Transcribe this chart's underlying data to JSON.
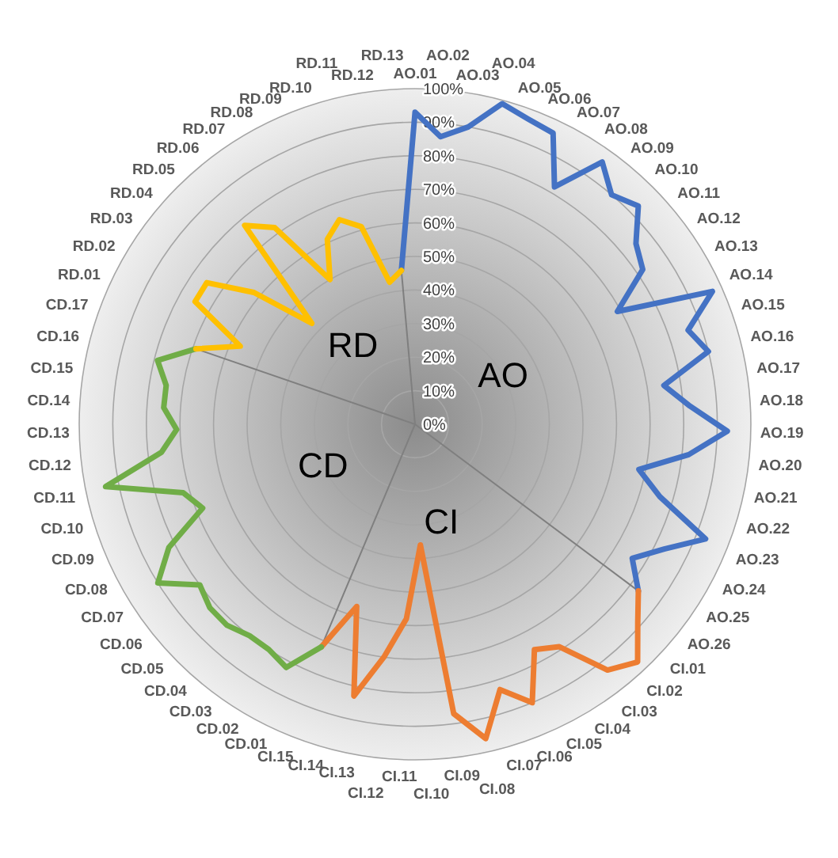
{
  "chart_data": {
    "type": "radar",
    "categories": [
      "AO.01",
      "AO.02",
      "AO.03",
      "AO.04",
      "AO.05",
      "AO.06",
      "AO.07",
      "AO.08",
      "AO.09",
      "AO.10",
      "AO.11",
      "AO.12",
      "AO.13",
      "AO.14",
      "AO.15",
      "AO.16",
      "AO.17",
      "AO.18",
      "AO.19",
      "AO.20",
      "AO.21",
      "AO.22",
      "AO.23",
      "AO.24",
      "AO.25",
      "AO.26",
      "CI.01",
      "CI.02",
      "CI.03",
      "CI.04",
      "CI.05",
      "CI.06",
      "CI.07",
      "CI.08",
      "CI.09",
      "CI.10",
      "CI.11",
      "CI.12",
      "CI.13",
      "CI.14",
      "CI.15",
      "CD.01",
      "CD.02",
      "CD.03",
      "CD.04",
      "CD.05",
      "CD.06",
      "CD.07",
      "CD.08",
      "CD.09",
      "CD.10",
      "CD.11",
      "CD.12",
      "CD.13",
      "CD.14",
      "CD.15",
      "CD.16",
      "CD.17",
      "RD.01",
      "RD.02",
      "RD.03",
      "RD.04",
      "RD.05",
      "RD.06",
      "RD.07",
      "RD.08",
      "RD.09",
      "RD.10",
      "RD.11",
      "RD.12",
      "RD.13"
    ],
    "series": [
      {
        "color": "#4472c4",
        "values": [
          93,
          86,
          90,
          99,
          97,
          96,
          82,
          96,
          90,
          93,
          85,
          82,
          69,
          97,
          86,
          90,
          75,
          82,
          93,
          82,
          68,
          76,
          93,
          83,
          76,
          83,
          null,
          null,
          null,
          null,
          null,
          null,
          null,
          null,
          null,
          null,
          null,
          null,
          null,
          null,
          null,
          null,
          null,
          null,
          null,
          null,
          null,
          null,
          null,
          null,
          null,
          null,
          null,
          null,
          null,
          null,
          null,
          null,
          null,
          null,
          null,
          null,
          null,
          null,
          null,
          null,
          null,
          null,
          null,
          null,
          46
        ]
      },
      {
        "color": "#ed7d31",
        "values": [
          null,
          null,
          null,
          null,
          null,
          null,
          null,
          null,
          null,
          null,
          null,
          null,
          null,
          null,
          null,
          null,
          null,
          null,
          null,
          null,
          null,
          null,
          null,
          null,
          null,
          83,
          89,
          97,
          93,
          79,
          76,
          90,
          83,
          96,
          87,
          36,
          58,
          70,
          83,
          57,
          72,
          null,
          null,
          null,
          null,
          null,
          null,
          null,
          null,
          null,
          null,
          null,
          null,
          null,
          null,
          null,
          null,
          null,
          null,
          null,
          null,
          null,
          null,
          null,
          null,
          null,
          null,
          null,
          null,
          null,
          null
        ]
      },
      {
        "color": "#70ad47",
        "values": [
          null,
          null,
          null,
          null,
          null,
          null,
          null,
          null,
          null,
          null,
          null,
          null,
          null,
          null,
          null,
          null,
          null,
          null,
          null,
          null,
          null,
          null,
          null,
          null,
          null,
          null,
          null,
          null,
          null,
          null,
          null,
          null,
          null,
          null,
          null,
          null,
          null,
          null,
          null,
          null,
          72,
          82,
          80,
          80,
          82,
          82,
          80,
          90,
          82,
          68,
          72,
          94,
          76,
          71,
          75,
          75,
          79,
          69,
          null,
          null,
          null,
          null,
          null,
          null,
          null,
          null,
          null,
          null,
          null,
          null,
          null
        ]
      },
      {
        "color": "#ffc000",
        "values": [
          null,
          null,
          null,
          null,
          null,
          null,
          null,
          null,
          null,
          null,
          null,
          null,
          null,
          null,
          null,
          null,
          null,
          null,
          null,
          null,
          null,
          null,
          null,
          null,
          null,
          null,
          null,
          null,
          null,
          null,
          null,
          null,
          null,
          null,
          null,
          null,
          null,
          null,
          null,
          null,
          null,
          null,
          null,
          null,
          null,
          null,
          null,
          null,
          null,
          null,
          null,
          null,
          null,
          null,
          null,
          null,
          null,
          69,
          57,
          75,
          75,
          62,
          43,
          78,
          72,
          50,
          61,
          65,
          61,
          43,
          46
        ]
      }
    ],
    "ylim": [
      0,
      100
    ],
    "yticks": [
      {
        "value": 0,
        "label": "0%"
      },
      {
        "value": 10,
        "label": "10%"
      },
      {
        "value": 20,
        "label": "20%"
      },
      {
        "value": 30,
        "label": "30%"
      },
      {
        "value": 40,
        "label": "40%"
      },
      {
        "value": 50,
        "label": "50%"
      },
      {
        "value": 60,
        "label": "60%"
      },
      {
        "value": 70,
        "label": "70%"
      },
      {
        "value": 80,
        "label": "80%"
      },
      {
        "value": 90,
        "label": "90%"
      },
      {
        "value": 100,
        "label": "100%"
      }
    ],
    "grid": true,
    "annotations": [
      "AO",
      "CI",
      "CD",
      "RD"
    ]
  }
}
